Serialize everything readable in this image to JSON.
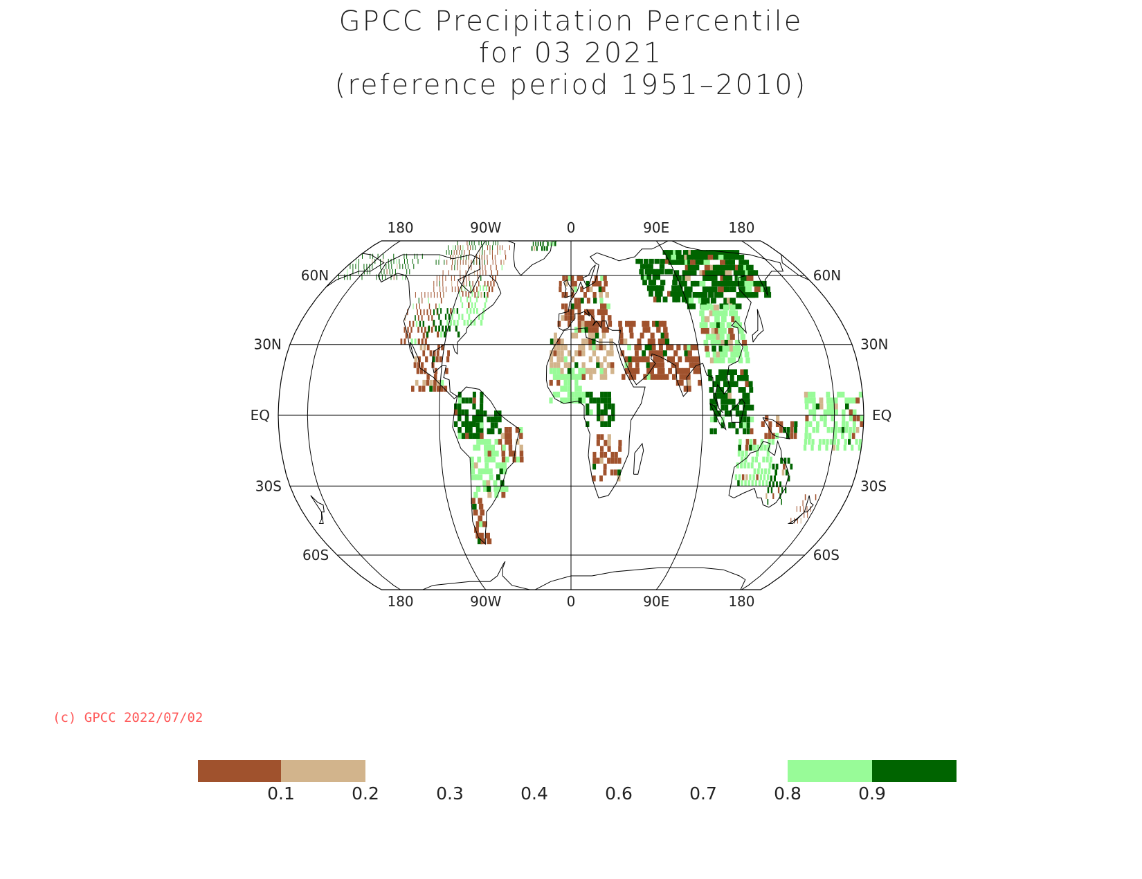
{
  "title": {
    "line1": "GPCC Precipitation Percentile",
    "line2": "for 03 2021",
    "line3": "(reference period 1951–2010)"
  },
  "copyright": "(c) GPCC 2022/07/02",
  "map": {
    "projection": "robinson",
    "central_longitude": 0,
    "longitude_range": [
      -200,
      200
    ],
    "meridians": [
      -180,
      -90,
      0,
      90,
      180
    ],
    "parallels": [
      -60,
      -30,
      0,
      30,
      60
    ],
    "lon_labels": [
      "180",
      "90W",
      "0",
      "90E",
      "180"
    ],
    "lat_labels_left": [
      "60N",
      "30N",
      "EQ",
      "30S",
      "60S"
    ],
    "lat_labels_right": [
      "60N",
      "30N",
      "EQ",
      "30S",
      "60S"
    ]
  },
  "legend": {
    "ticks": [
      "0.1",
      "0.2",
      "0.3",
      "0.4",
      "0.6",
      "0.7",
      "0.8",
      "0.9"
    ],
    "classes": [
      {
        "range": [
          0,
          0.1
        ],
        "color": "#a0522d"
      },
      {
        "range": [
          0.1,
          0.2
        ],
        "color": "#d2b48c"
      },
      {
        "range": [
          0.8,
          0.9
        ],
        "color": "#98fb98"
      },
      {
        "range": [
          0.9,
          1.0
        ],
        "color": "#006400"
      }
    ]
  },
  "colors": {
    "very_dry": "#a0522d",
    "dry": "#d2b48c",
    "wet": "#98fb98",
    "very_wet": "#006400",
    "grid": "#000000",
    "coast": "#000000"
  },
  "regions": [
    {
      "name": "alaska-east-siberia-wet",
      "class": "very_wet",
      "lon": [
        -200,
        -140
      ],
      "lat": [
        58,
        70
      ]
    },
    {
      "name": "canada-arctic-wet",
      "class": "very_wet",
      "lon": [
        -125,
        -75
      ],
      "lat": [
        65,
        78
      ]
    },
    {
      "name": "canada-dry-patches",
      "class": "very_dry",
      "lon": [
        -115,
        -60
      ],
      "lat": [
        50,
        75
      ]
    },
    {
      "name": "greenland-wet",
      "class": "very_wet",
      "lon": [
        -40,
        -15
      ],
      "lat": [
        72,
        82
      ]
    },
    {
      "name": "western-us-dry",
      "class": "very_dry",
      "lon": [
        -125,
        -100
      ],
      "lat": [
        30,
        52
      ]
    },
    {
      "name": "central-us-wet",
      "class": "very_wet",
      "lon": [
        -105,
        -80
      ],
      "lat": [
        33,
        45
      ]
    },
    {
      "name": "northeast-us-wet",
      "class": "wet",
      "lon": [
        -90,
        -65
      ],
      "lat": [
        38,
        55
      ]
    },
    {
      "name": "mexico-central-america-dry",
      "class": "very_dry",
      "lon": [
        -110,
        -85
      ],
      "lat": [
        10,
        28
      ]
    },
    {
      "name": "amazon-west-wet",
      "class": "very_wet",
      "lon": [
        -80,
        -60
      ],
      "lat": [
        -10,
        8
      ]
    },
    {
      "name": "amazon-central-wet",
      "class": "very_wet",
      "lon": [
        -65,
        -48
      ],
      "lat": [
        -8,
        2
      ]
    },
    {
      "name": "brazil-east-dry",
      "class": "very_dry",
      "lon": [
        -48,
        -35
      ],
      "lat": [
        -20,
        -5
      ]
    },
    {
      "name": "south-america-mixed",
      "class": "wet",
      "lon": [
        -70,
        -45
      ],
      "lat": [
        -35,
        -10
      ]
    },
    {
      "name": "patagonia-dry",
      "class": "very_dry",
      "lon": [
        -75,
        -65
      ],
      "lat": [
        -55,
        -35
      ]
    },
    {
      "name": "north-africa-dry",
      "class": "dry",
      "lon": [
        -15,
        30
      ],
      "lat": [
        15,
        35
      ]
    },
    {
      "name": "west-africa-wet",
      "class": "wet",
      "lon": [
        -15,
        10
      ],
      "lat": [
        5,
        20
      ]
    },
    {
      "name": "central-africa-wet",
      "class": "very_wet",
      "lon": [
        10,
        30
      ],
      "lat": [
        -5,
        10
      ]
    },
    {
      "name": "southern-africa-dry",
      "class": "very_dry",
      "lon": [
        15,
        35
      ],
      "lat": [
        -28,
        -8
      ]
    },
    {
      "name": "europe-dry",
      "class": "very_dry",
      "lon": [
        -10,
        30
      ],
      "lat": [
        35,
        60
      ]
    },
    {
      "name": "middle-east-dry",
      "class": "very_dry",
      "lon": [
        35,
        70
      ],
      "lat": [
        15,
        40
      ]
    },
    {
      "name": "india-dry",
      "class": "very_dry",
      "lon": [
        70,
        90
      ],
      "lat": [
        10,
        30
      ]
    },
    {
      "name": "siberia-west-wet",
      "class": "very_wet",
      "lon": [
        60,
        90
      ],
      "lat": [
        48,
        68
      ]
    },
    {
      "name": "siberia-central-wet",
      "class": "very_wet",
      "lon": [
        90,
        130
      ],
      "lat": [
        45,
        72
      ]
    },
    {
      "name": "northeast-asia-wet",
      "class": "very_wet",
      "lon": [
        130,
        160
      ],
      "lat": [
        50,
        72
      ]
    },
    {
      "name": "china-mixed",
      "class": "wet",
      "lon": [
        95,
        125
      ],
      "lat": [
        22,
        45
      ]
    },
    {
      "name": "southeast-asia-wet",
      "class": "very_wet",
      "lon": [
        95,
        125
      ],
      "lat": [
        -8,
        18
      ]
    },
    {
      "name": "indonesia-dry",
      "class": "very_dry",
      "lon": [
        130,
        155
      ],
      "lat": [
        -10,
        0
      ]
    },
    {
      "name": "australia-north-wet",
      "class": "wet",
      "lon": [
        115,
        140
      ],
      "lat": [
        -30,
        -12
      ]
    },
    {
      "name": "australia-east-wet",
      "class": "very_wet",
      "lon": [
        140,
        155
      ],
      "lat": [
        -38,
        -20
      ]
    },
    {
      "name": "new-zealand-dry",
      "class": "very_dry",
      "lon": [
        166,
        178
      ],
      "lat": [
        -46,
        -35
      ]
    },
    {
      "name": "pacific-islands-mixed",
      "class": "wet",
      "lon": [
        160,
        200
      ],
      "lat": [
        -15,
        10
      ]
    }
  ]
}
